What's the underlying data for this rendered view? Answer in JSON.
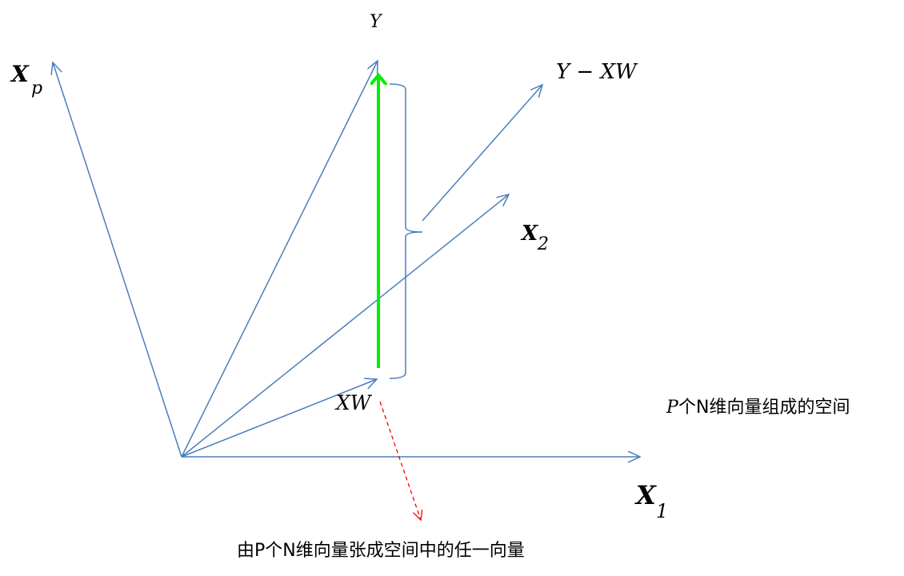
{
  "colors": {
    "vector": "#4a7ebb",
    "projection": "#00ee00",
    "pointer": "#ff0000"
  },
  "labels": {
    "y": "Y",
    "residual": "Y − XW",
    "x2_base": "X",
    "x2_sub": "2",
    "xp_base": "X",
    "xp_sub": "p",
    "x1_base": "X",
    "x1_sub": "1",
    "xw": "XW",
    "space_p": "P",
    "space_rest": "个N维向量组成的空间",
    "span_note": "由P个N维向量张成空间中的任一向量"
  }
}
